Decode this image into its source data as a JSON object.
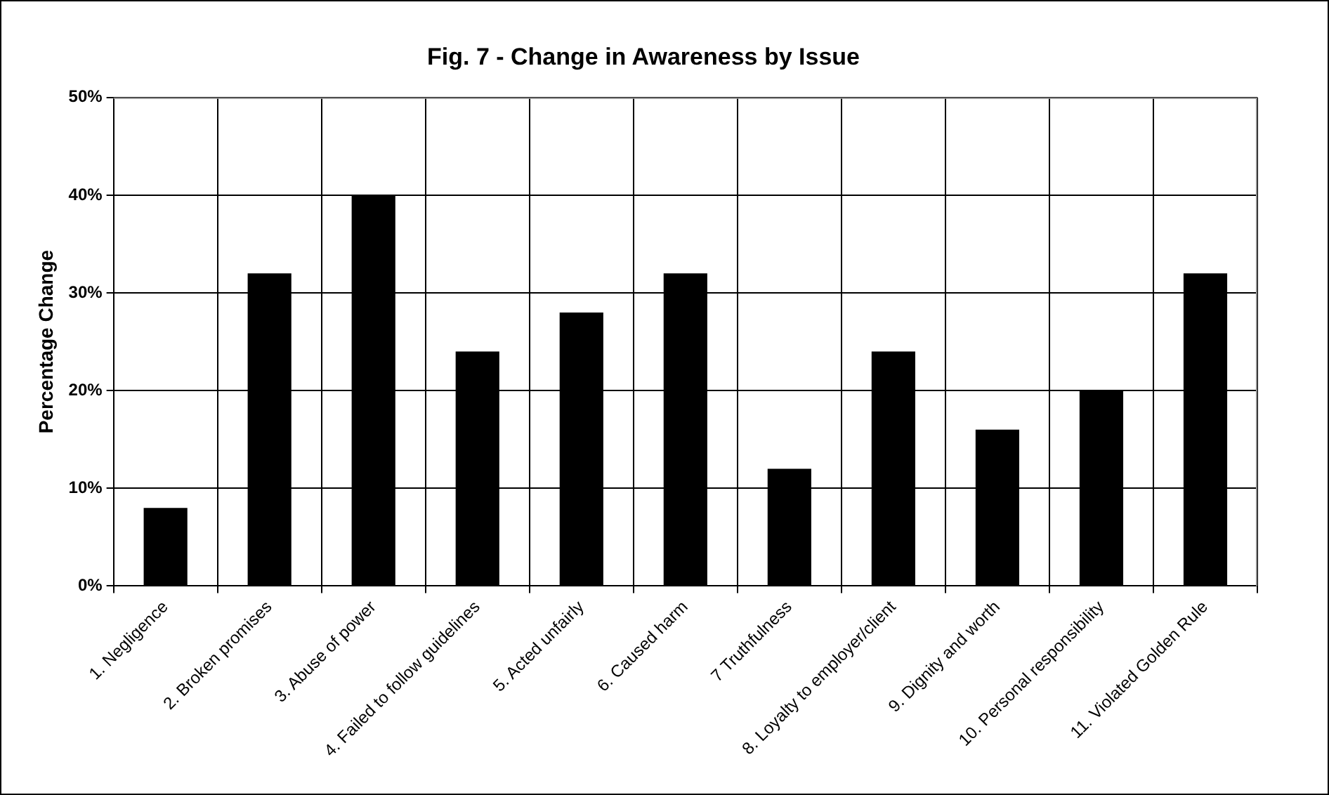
{
  "chart_data": {
    "type": "bar",
    "title": "Fig. 7 - Change in Awareness by Issue",
    "ylabel": "Percentage Change",
    "categories": [
      "1. Negligence",
      "2. Broken promises",
      "3. Abuse of power",
      "4. Failed to follow guidelines",
      "5. Acted unfairly",
      "6. Caused harm",
      "7 Truthfulness",
      "8. Loyalty to employer/client",
      "9. Dignity and worth",
      "10. Personal responsibility",
      "11. Violated Golden Rule"
    ],
    "values": [
      8,
      32,
      40,
      24,
      28,
      32,
      12,
      24,
      16,
      20,
      32
    ],
    "color": "#000000",
    "ylim": [
      0,
      50
    ],
    "yticks": [
      {
        "value": 0,
        "label": "0%"
      },
      {
        "value": 10,
        "label": "10%"
      },
      {
        "value": 20,
        "label": "20%"
      },
      {
        "value": 30,
        "label": "30%"
      },
      {
        "value": 40,
        "label": "40%"
      },
      {
        "value": 50,
        "label": "50%"
      }
    ],
    "grid": true,
    "legend": false
  }
}
